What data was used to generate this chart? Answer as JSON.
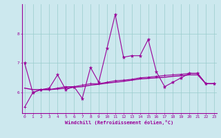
{
  "xlabel": "Windchill (Refroidissement éolien,°C)",
  "x_ticks": [
    0,
    1,
    2,
    3,
    4,
    5,
    6,
    7,
    8,
    9,
    10,
    11,
    12,
    13,
    14,
    15,
    16,
    17,
    18,
    19,
    20,
    21,
    22,
    23
  ],
  "y_ticks": [
    6,
    7,
    8
  ],
  "ylim": [
    5.3,
    9.0
  ],
  "xlim": [
    -0.3,
    23.3
  ],
  "bg_color": "#cce8ee",
  "line_color": "#990099",
  "grid_color": "#99cccc",
  "series1_star": [
    7.0,
    6.0,
    6.1,
    6.15,
    6.6,
    6.1,
    6.2,
    5.8,
    6.85,
    6.35,
    7.5,
    8.65,
    7.2,
    7.25,
    7.25,
    7.8,
    6.7,
    6.2,
    6.35,
    6.5,
    6.65,
    6.65,
    6.3,
    6.3
  ],
  "series2_plus": [
    5.5,
    6.0,
    6.1,
    6.1,
    6.15,
    6.2,
    6.2,
    6.25,
    6.3,
    6.3,
    6.35,
    6.4,
    6.42,
    6.45,
    6.5,
    6.52,
    6.55,
    6.58,
    6.6,
    6.62,
    6.65,
    6.65,
    6.3,
    6.3
  ],
  "series3_line": [
    6.15,
    6.1,
    6.1,
    6.1,
    6.12,
    6.15,
    6.18,
    6.2,
    6.25,
    6.28,
    6.32,
    6.35,
    6.38,
    6.42,
    6.46,
    6.48,
    6.5,
    6.52,
    6.55,
    6.57,
    6.6,
    6.6,
    6.3,
    6.3
  ]
}
